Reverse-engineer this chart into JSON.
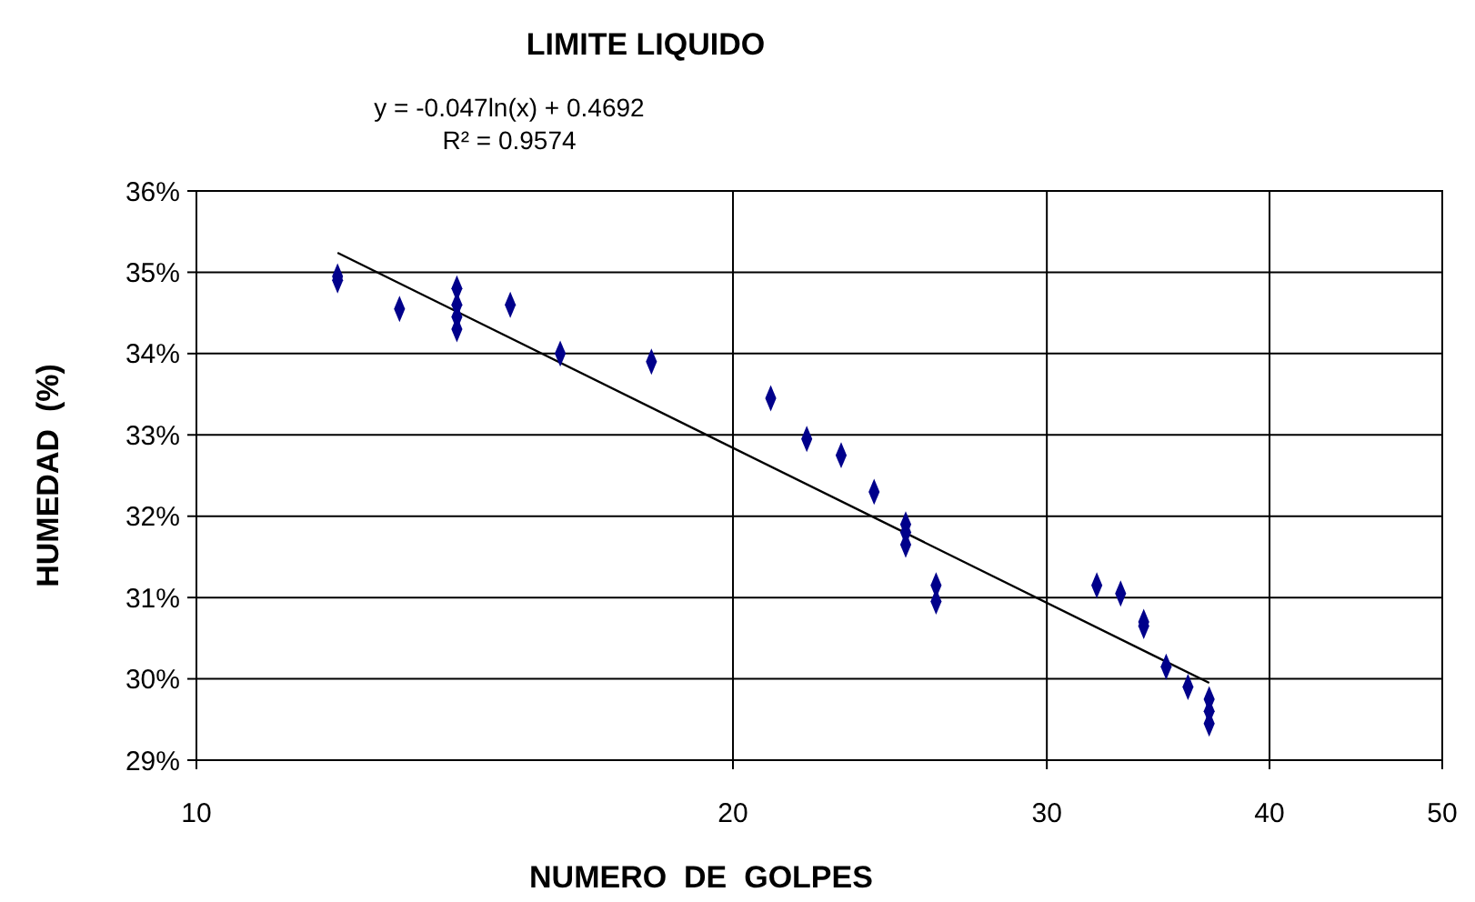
{
  "chart_data": {
    "type": "scatter",
    "title": "LIMITE LIQUIDO",
    "xlabel": "NUMERO  DE  GOLPES",
    "ylabel": "HUMEDAD  (%)",
    "annotations": [
      "y = -0.047ln(x) + 0.4692",
      "R² = 0.9574"
    ],
    "log": "x",
    "xlim": [
      10,
      50
    ],
    "xticks": [
      10,
      20,
      30,
      40,
      50
    ],
    "ylim": [
      29,
      36
    ],
    "yticks": [
      {
        "value": 29,
        "label": "29%"
      },
      {
        "value": 30,
        "label": "30%"
      },
      {
        "value": 31,
        "label": "31%"
      },
      {
        "value": 32,
        "label": "32%"
      },
      {
        "value": 33,
        "label": "33%"
      },
      {
        "value": 34,
        "label": "34%"
      },
      {
        "value": 35,
        "label": "35%"
      },
      {
        "value": 36,
        "label": "36%"
      }
    ],
    "grid": true,
    "marker": "diamond",
    "series": [
      {
        "color": "#00008b",
        "x": [
          12,
          12,
          13,
          14,
          14,
          14,
          14,
          15,
          16,
          18,
          21,
          22,
          23,
          24,
          25,
          25,
          25,
          26,
          26,
          32,
          33,
          34,
          34,
          35,
          36,
          37,
          37,
          37
        ],
        "values": [
          34.95,
          34.9,
          34.55,
          34.8,
          34.6,
          34.45,
          34.3,
          34.6,
          34.0,
          33.9,
          33.45,
          32.95,
          32.75,
          32.3,
          31.9,
          31.8,
          31.65,
          31.15,
          30.95,
          31.15,
          31.05,
          30.7,
          30.65,
          30.15,
          29.9,
          29.75,
          29.6,
          29.45
        ]
      },
      {
        "type": "line",
        "color": "#000000",
        "marker": "none",
        "line_style": "solid",
        "x": [
          12,
          37
        ],
        "values": [
          35.24,
          29.95
        ]
      }
    ]
  }
}
